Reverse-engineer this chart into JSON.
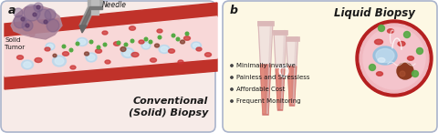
{
  "fig_width": 4.8,
  "fig_height": 1.46,
  "dpi": 100,
  "outer_bg": "#ffffff",
  "panel_a_bg": "#f7ebe8",
  "panel_b_bg": "#fdf8e4",
  "border_color": "#aab4cc",
  "label_a": "a",
  "label_b": "b",
  "title_a_line1": "Conventional",
  "title_a_line2": "(Solid) Biopsy",
  "title_b": "Liquid Biopsy",
  "needle_label": "Needle",
  "tumor_label": "Solid\nTumor",
  "bullet_points": [
    "Minimally Invasive",
    "Painless and Stressless",
    "Affordable Cost",
    "Frequent Monitoring"
  ],
  "vessel_red": "#c0322a",
  "vessel_pink": "#f2b8b8",
  "vessel_light": "#f8d8d8",
  "tumor_base": "#b0899c",
  "tumor_dark": "#7a5f8a",
  "needle_gray": "#999999",
  "needle_dark": "#666666",
  "tube_glass": "#eedcdc",
  "tube_rim": "#dbb8b8",
  "tube_liquid": "#d4736a",
  "tube_liquid2": "#c96055",
  "circle_border": "#b52020",
  "circle_fill": "#f0b8c0",
  "cell_red": "#cc3333",
  "cell_red2": "#dd5555",
  "cell_green": "#55aa44",
  "cell_blue": "#b8d8ee",
  "cell_blue2": "#d8eef8",
  "cell_dark": "#7a3322",
  "cell_dark2": "#5a2211",
  "text_color": "#1a1a1a",
  "bullet_color": "#444444"
}
